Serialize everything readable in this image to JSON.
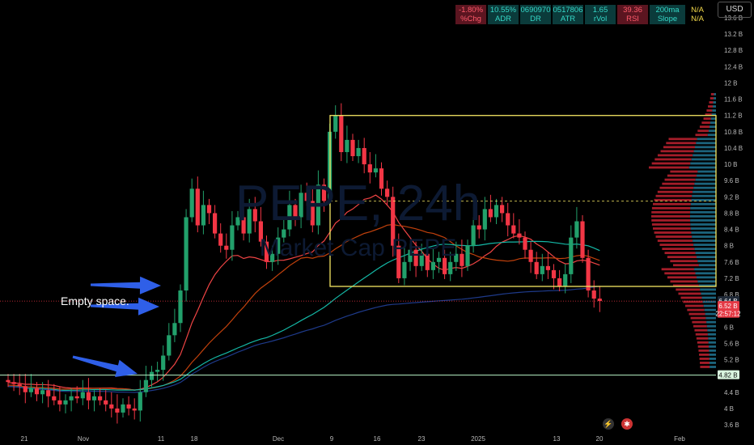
{
  "header": {
    "currency": "USD",
    "stats": [
      {
        "value": "-1.80%",
        "label": "%Chg",
        "tone": "red"
      },
      {
        "value": "10.55%",
        "label": "ADR",
        "tone": "teal"
      },
      {
        "value": "0690970",
        "label": "DR",
        "tone": "teal"
      },
      {
        "value": "0517806",
        "label": "ATR",
        "tone": "teal"
      },
      {
        "value": "1.65",
        "label": "rVol",
        "tone": "teal"
      },
      {
        "value": "39.36",
        "label": "RSI",
        "tone": "red"
      },
      {
        "value": "200ma",
        "label": "Slope",
        "tone": "teal"
      }
    ],
    "na_values": [
      "N/A",
      "N/A"
    ]
  },
  "watermark": {
    "title": "PEPE, 24h",
    "subtitle": "Market Cap PEPE"
  },
  "annotation": "Empty space.",
  "icons": [
    "lightning-icon",
    "us-flag-icon"
  ],
  "chart_data": {
    "type": "candlestick",
    "x_ticks": [
      "21",
      "Nov",
      "11",
      "18",
      "Dec",
      "9",
      "16",
      "23",
      "2025",
      "13",
      "20",
      "Feb"
    ],
    "y_ticks": [
      "3.6 B",
      "4 B",
      "4.4 B",
      "4.8 B",
      "5.2 B",
      "5.6 B",
      "6 B",
      "6.4 B",
      "6.8 B",
      "7.2 B",
      "7.6 B",
      "8 B",
      "8.4 B",
      "8.8 B",
      "9.2 B",
      "9.6 B",
      "10 B",
      "10.4 B",
      "10.8 B",
      "11.2 B",
      "11.6 B",
      "12 B",
      "12.4 B",
      "12.8 B",
      "13.2 B",
      "13.6 B"
    ],
    "y_range": [
      3.4,
      13.9
    ],
    "unit": "B",
    "price_labels": [
      {
        "value": "6.64 B",
        "level": 6.64,
        "color": "#1f2937"
      },
      {
        "value": "6.52 B",
        "level": 6.52,
        "color": "#e53945"
      },
      {
        "value": "22:57:12",
        "level": 6.33,
        "color": "#e53945"
      },
      {
        "value": "4.82 B",
        "level": 4.82,
        "color": "#d9f5df"
      }
    ],
    "support_level": 4.82,
    "range_box": {
      "top": 11.2,
      "bottom": 7.0
    },
    "dashed_level": 9.1,
    "current_level": 6.64,
    "closes": [
      4.65,
      4.6,
      4.55,
      4.4,
      4.5,
      4.35,
      4.45,
      4.3,
      4.2,
      4.1,
      4.2,
      4.3,
      4.25,
      4.4,
      4.2,
      4.3,
      4.2,
      4.1,
      4.0,
      3.9,
      4.1,
      4.0,
      3.95,
      4.4,
      4.7,
      4.9,
      4.95,
      5.3,
      5.8,
      6.1,
      6.9,
      8.7,
      9.4,
      8.5,
      9.0,
      8.8,
      8.3,
      8.0,
      7.9,
      8.5,
      8.7,
      8.3,
      8.9,
      8.6,
      8.1,
      7.6,
      7.8,
      8.2,
      8.4,
      9.0,
      8.7,
      9.3,
      9.1,
      8.5,
      9.5,
      9.1,
      10.8,
      11.2,
      10.3,
      10.6,
      10.2,
      10.4,
      10.0,
      9.8,
      9.9,
      9.4,
      9.2,
      8.0,
      7.2,
      7.6,
      7.9,
      7.5,
      7.8,
      7.4,
      7.6,
      7.7,
      7.3,
      7.6,
      7.8,
      7.5,
      8.0,
      8.5,
      8.4,
      8.9,
      8.7,
      9.0,
      8.8,
      8.5,
      8.3,
      8.2,
      7.9,
      7.6,
      7.3,
      7.5,
      7.4,
      7.2,
      7.0,
      7.3,
      8.2,
      8.6,
      7.7,
      6.9,
      6.7,
      6.64
    ],
    "ema_short": {
      "from": 4.6,
      "to": 7.9,
      "color": "#ef4444"
    },
    "ema_mid": {
      "from": 4.4,
      "to": 7.2,
      "color": "#c2410c"
    },
    "ema_long": {
      "from": 4.3,
      "to": 7.1,
      "color": "#14b8a6"
    },
    "ma_200": {
      "from": 4.3,
      "to": 6.2,
      "color": "#1e3a8a"
    }
  }
}
